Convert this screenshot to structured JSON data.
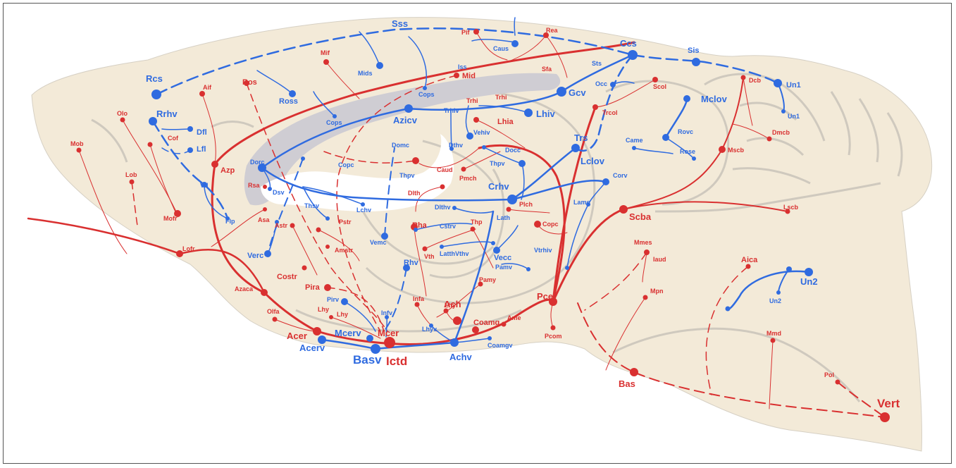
{
  "colors": {
    "artery": "#d93030",
    "vein": "#2f6be0",
    "brain_fill": "#f3ead8",
    "brain_outline": "#c8c2b6",
    "ventricle": "#cfcdd3"
  },
  "labels": {
    "sss": "Sss",
    "pif": "Pif",
    "rea": "Rea",
    "caus": "Caus",
    "ccs": "Ccs",
    "sis": "Sis",
    "rcs": "Rcs",
    "mif": "Mif",
    "mids": "Mids",
    "sfa": "Sfa",
    "iss": "Iss",
    "sts": "Sts",
    "mid": "Mid",
    "dcb": "Dcb",
    "un1a": "Un1",
    "un1b": "Un1",
    "aif": "Aif",
    "ros": "Ros",
    "ross": "Ross",
    "cops_top": "Cops",
    "cops_mid": "Cops",
    "gcv": "Gcv",
    "occ": "Occ",
    "scol": "Scol",
    "mclov": "Mclov",
    "rrhv": "Rrhv",
    "olo": "Olo",
    "dfl": "Dfl",
    "trhi": "Trhi",
    "trhiv": "Trhiv",
    "trhi2": "Trhi",
    "lhiv": "Lhiv",
    "trcol": "Trcol",
    "dmcb": "Dmcb",
    "azicv": "Azicv",
    "vehiv": "Vehiv",
    "lhia": "Lhia",
    "rovc": "Rovc",
    "cof": "Cof",
    "lfl": "Lfl",
    "mob": "Mob",
    "dthv": "Dthv",
    "trs": "Trs",
    "came": "Came",
    "mscb": "Mscb",
    "domc": "Domc",
    "docc": "Docc",
    "rose": "Rose",
    "lclov": "Lclov",
    "dorc": "Dorc",
    "copc": "Copc",
    "azp": "Azp",
    "caud": "Caud",
    "thpv": "Thpv",
    "pmch": "Pmch",
    "thpv2": "Thpv",
    "lob": "Lob",
    "corv": "Corv",
    "rsa": "Rsa",
    "dsv": "Dsv",
    "vfl": "Vfl",
    "crhv": "Crhv",
    "dlth": "Dlth",
    "lame": "Lame",
    "lchv": "Lchv",
    "thsv": "Thsv",
    "dlthv": "Dlthv",
    "plch": "Plch",
    "lscb": "Lscb",
    "mofr": "Mofr",
    "flp": "Flp",
    "asa": "Asa",
    "scba": "Scba",
    "astr": "Astr",
    "pstr": "Pstr",
    "rha": "Rha",
    "thp": "Thp",
    "lath": "Lath",
    "cstrv": "Cstrv",
    "copc2": "Copc",
    "lofr": "Lofr",
    "vemc": "Vemc",
    "amstr": "Amstr",
    "vth": "Vth",
    "latthvthv": "LatthVthv",
    "vecc": "Vecc",
    "vtrhiv": "Vtrhiv",
    "mmes": "Mmes",
    "iaud": "Iaud",
    "verc": "Verc",
    "aica": "Aica",
    "costr": "Costr",
    "rhv": "Rhv",
    "pamv": "Pamv",
    "pamy": "Pamy",
    "azaca": "Azaca",
    "pira": "Pira",
    "mpn": "Mpn",
    "pcer": "Pcer",
    "un2a": "Un2",
    "un2b": "Un2",
    "pirv": "Pirv",
    "infa": "Infa",
    "lhy_a": "Lhy",
    "olfa": "Olfa",
    "lhy_b": "Lhy",
    "lhy_c": "Lhy",
    "ach": "Ach",
    "infv": "Infv",
    "ame": "Ame",
    "pcom": "Pcom",
    "coamg": "Coamg",
    "lhyv": "Lhyv",
    "mmd": "Mmd",
    "acer": "Acer",
    "mcerv": "Mcerv",
    "mcer": "Mcer",
    "coamgv": "Coamgv",
    "acerv": "Acerv",
    "basv": "Basv",
    "ictd": "Ictd",
    "achv": "Achv",
    "bas": "Bas",
    "pol": "Pol",
    "vert": "Vert"
  }
}
